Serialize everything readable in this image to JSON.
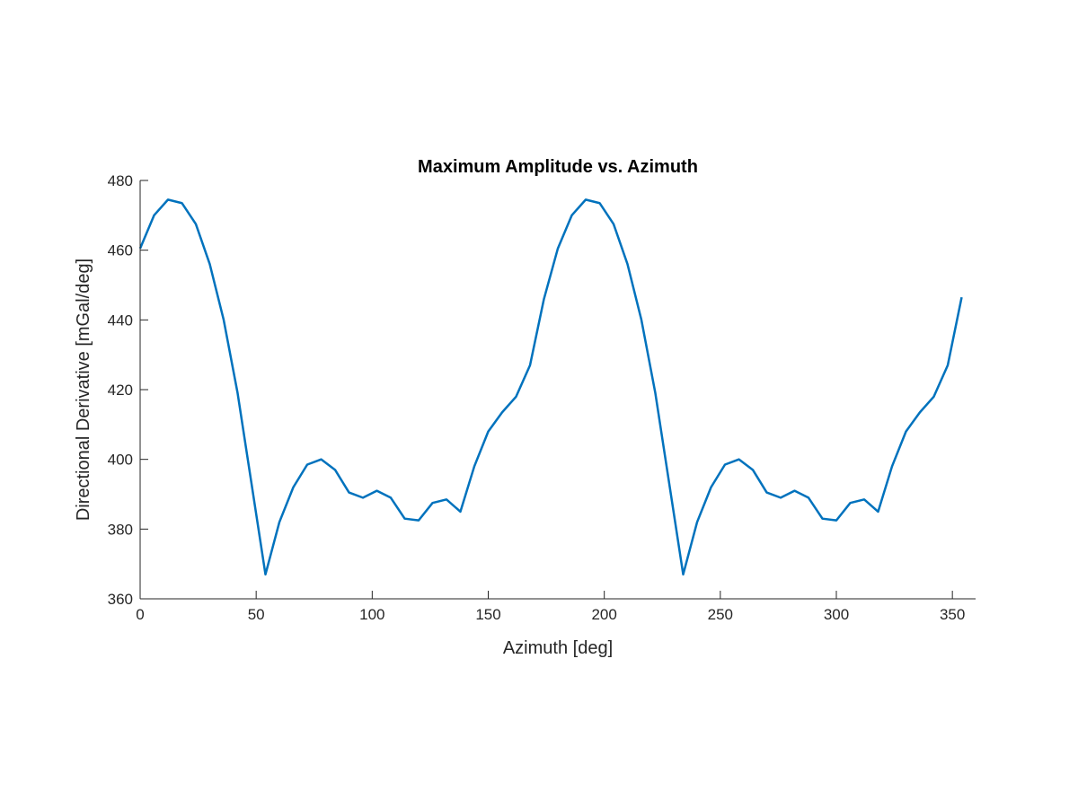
{
  "chart_data": {
    "type": "line",
    "title": "Maximum Amplitude vs. Azimuth",
    "xlabel": "Azimuth [deg]",
    "ylabel": "Directional Derivative [mGal/deg]",
    "xlim": [
      0,
      360
    ],
    "ylim": [
      360,
      480
    ],
    "xticks": [
      0,
      50,
      100,
      150,
      200,
      250,
      300,
      350
    ],
    "yticks": [
      360,
      380,
      400,
      420,
      440,
      460,
      480
    ],
    "grid": false,
    "line_color": "#0072BD",
    "axis_color": "#262626",
    "series": [
      {
        "x": [
          0,
          6,
          12,
          18,
          24,
          30,
          36,
          42,
          48,
          54,
          60,
          66,
          72,
          78,
          84,
          90,
          96,
          102,
          108,
          114,
          120,
          126,
          132,
          138,
          144,
          150,
          156,
          162,
          168,
          174,
          180,
          186,
          192,
          198,
          204,
          210,
          216,
          222,
          228,
          234,
          240,
          246,
          252,
          258,
          264,
          270,
          276,
          282,
          288,
          294,
          300,
          306,
          312,
          318,
          324,
          330,
          336,
          342,
          348,
          354
        ],
        "y": [
          460.5,
          470,
          474.5,
          473.5,
          467.5,
          456,
          440,
          419,
          393,
          367,
          382,
          392,
          398.5,
          400,
          397,
          390.5,
          389,
          391,
          389,
          383,
          382.5,
          387.5,
          388.5,
          385,
          398,
          408,
          413.5,
          418,
          427,
          446,
          460.5,
          470,
          474.5,
          473.5,
          467.5,
          456,
          440,
          419,
          393,
          367,
          382,
          392,
          398.5,
          400,
          397,
          390.5,
          389,
          391,
          389,
          383,
          382.5,
          387.5,
          388.5,
          385,
          398,
          408,
          413.5,
          418,
          427,
          446.5
        ]
      }
    ]
  }
}
